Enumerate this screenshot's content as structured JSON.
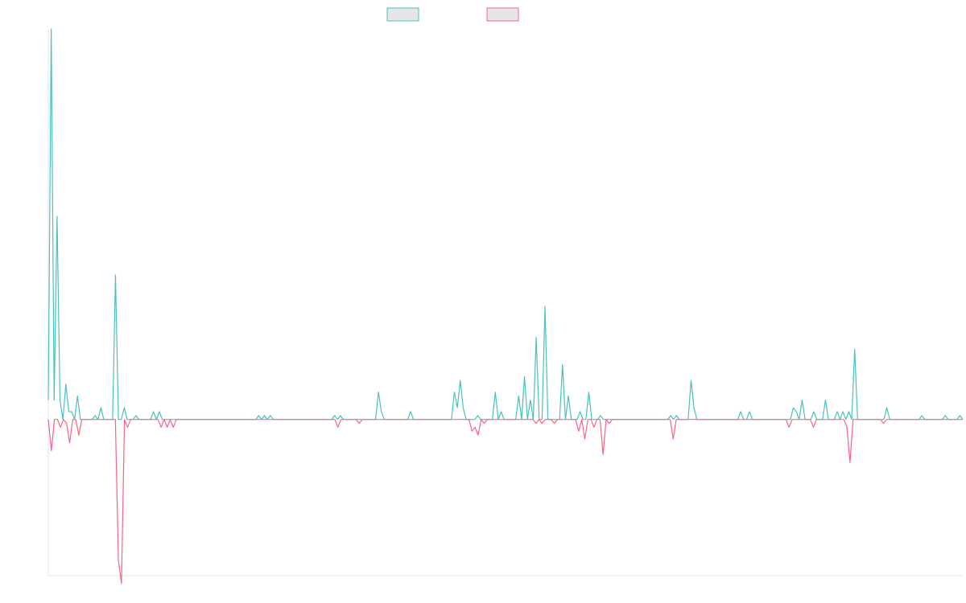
{
  "chart_data": {
    "type": "line",
    "ylim": [
      -0.4,
      1.0
    ],
    "grid": false,
    "legend_position": "top",
    "colors": {
      "series_a": "#4bc0c0",
      "series_b": "#ff6384",
      "swatch_fill": "#e6e6e6",
      "axis": "#e5e5e5"
    },
    "series": [
      {
        "legend_label": "",
        "color": "#4bc0c0",
        "values": [
          0.05,
          1.0,
          0.05,
          0.52,
          0.05,
          0.0,
          0.09,
          0.02,
          0.02,
          0.0,
          0.06,
          0.0,
          0.0,
          0.0,
          0.0,
          0.0,
          0.01,
          0.0,
          0.03,
          0.0,
          0.0,
          0.0,
          0.0,
          0.37,
          0.0,
          0.0,
          0.03,
          0.0,
          0.0,
          0.0,
          0.01,
          0.0,
          0.0,
          0.0,
          0.0,
          0.0,
          0.02,
          0.0,
          0.02,
          0.0,
          0.0,
          0.0,
          0.0,
          0.0,
          0.0,
          0.0,
          0.0,
          0.0,
          0.0,
          0.0,
          0.0,
          0.0,
          0.0,
          0.0,
          0.0,
          0.0,
          0.0,
          0.0,
          0.0,
          0.0,
          0.0,
          0.0,
          0.0,
          0.0,
          0.0,
          0.0,
          0.0,
          0.0,
          0.0,
          0.0,
          0.0,
          0.0,
          0.01,
          0.0,
          0.01,
          0.0,
          0.01,
          0.0,
          0.0,
          0.0,
          0.0,
          0.0,
          0.0,
          0.0,
          0.0,
          0.0,
          0.0,
          0.0,
          0.0,
          0.0,
          0.0,
          0.0,
          0.0,
          0.0,
          0.0,
          0.0,
          0.0,
          0.0,
          0.01,
          0.0,
          0.01,
          0.0,
          0.0,
          0.0,
          0.0,
          0.0,
          0.0,
          0.0,
          0.0,
          0.0,
          0.0,
          0.0,
          0.0,
          0.07,
          0.02,
          0.0,
          0.0,
          0.0,
          0.0,
          0.0,
          0.0,
          0.0,
          0.0,
          0.0,
          0.02,
          0.0,
          0.0,
          0.0,
          0.0,
          0.0,
          0.0,
          0.0,
          0.0,
          0.0,
          0.0,
          0.0,
          0.0,
          0.0,
          0.0,
          0.07,
          0.03,
          0.1,
          0.03,
          0.0,
          0.0,
          0.0,
          0.0,
          0.01,
          0.0,
          0.0,
          0.0,
          0.0,
          0.0,
          0.07,
          0.0,
          0.02,
          0.0,
          0.0,
          0.0,
          0.0,
          0.0,
          0.06,
          0.0,
          0.11,
          0.0,
          0.05,
          0.0,
          0.21,
          0.0,
          0.0,
          0.29,
          0.0,
          0.0,
          0.0,
          0.0,
          0.0,
          0.14,
          0.0,
          0.06,
          0.0,
          0.0,
          0.0,
          0.02,
          0.0,
          0.0,
          0.07,
          0.0,
          0.0,
          0.0,
          0.01,
          0.0,
          0.0,
          0.0,
          0.0,
          0.0,
          0.0,
          0.0,
          0.0,
          0.0,
          0.0,
          0.0,
          0.0,
          0.0,
          0.0,
          0.0,
          0.0,
          0.0,
          0.0,
          0.0,
          0.0,
          0.0,
          0.0,
          0.0,
          0.01,
          0.0,
          0.01,
          0.0,
          0.0,
          0.0,
          0.0,
          0.1,
          0.03,
          0.0,
          0.0,
          0.0,
          0.0,
          0.0,
          0.0,
          0.0,
          0.0,
          0.0,
          0.0,
          0.0,
          0.0,
          0.0,
          0.0,
          0.0,
          0.02,
          0.0,
          0.0,
          0.02,
          0.0,
          0.0,
          0.0,
          0.0,
          0.0,
          0.0,
          0.0,
          0.0,
          0.0,
          0.0,
          0.0,
          0.0,
          0.0,
          0.0,
          0.03,
          0.02,
          0.0,
          0.05,
          0.0,
          0.0,
          0.0,
          0.02,
          0.0,
          0.0,
          0.0,
          0.05,
          0.0,
          0.0,
          0.0,
          0.02,
          0.0,
          0.02,
          0.0,
          0.02,
          0.0,
          0.18,
          0.0,
          0.0,
          0.0,
          0.0,
          0.0,
          0.0,
          0.0,
          0.0,
          0.0,
          0.0,
          0.03,
          0.0,
          0.0,
          0.0,
          0.0,
          0.0,
          0.0,
          0.0,
          0.0,
          0.0,
          0.0,
          0.0,
          0.01,
          0.0,
          0.0,
          0.0,
          0.0,
          0.0,
          0.0,
          0.0,
          0.01,
          0.0,
          0.0,
          0.0,
          0.0,
          0.01,
          0.0
        ]
      },
      {
        "legend_label": "",
        "color": "#ff6384",
        "values": [
          0.0,
          -0.08,
          0.0,
          0.0,
          -0.02,
          0.0,
          -0.01,
          -0.06,
          0.0,
          0.0,
          -0.04,
          0.0,
          0.0,
          0.0,
          0.0,
          0.0,
          0.0,
          0.0,
          0.0,
          0.0,
          0.0,
          0.0,
          0.0,
          -0.36,
          -0.42,
          0.0,
          -0.02,
          0.0,
          0.0,
          0.0,
          0.0,
          0.0,
          0.0,
          0.0,
          0.0,
          0.0,
          0.0,
          -0.02,
          0.0,
          -0.02,
          0.0,
          -0.02,
          0.0,
          0.0,
          0.0,
          0.0,
          0.0,
          0.0,
          0.0,
          0.0,
          0.0,
          0.0,
          0.0,
          0.0,
          0.0,
          0.0,
          0.0,
          0.0,
          0.0,
          0.0,
          0.0,
          0.0,
          0.0,
          0.0,
          0.0,
          0.0,
          0.0,
          0.0,
          0.0,
          0.0,
          0.0,
          0.0,
          0.0,
          0.0,
          0.0,
          0.0,
          0.0,
          0.0,
          0.0,
          0.0,
          0.0,
          0.0,
          0.0,
          0.0,
          0.0,
          0.0,
          0.0,
          0.0,
          0.0,
          0.0,
          0.0,
          0.0,
          0.0,
          0.0,
          0.0,
          -0.02,
          0.0,
          0.0,
          0.0,
          0.0,
          0.0,
          0.0,
          -0.01,
          0.0,
          0.0,
          0.0,
          0.0,
          0.0,
          0.0,
          0.0,
          0.0,
          0.0,
          0.0,
          0.0,
          0.0,
          0.0,
          0.0,
          0.0,
          0.0,
          0.0,
          0.0,
          0.0,
          0.0,
          0.0,
          0.0,
          0.0,
          0.0,
          0.0,
          0.0,
          0.0,
          0.0,
          0.0,
          0.0,
          0.0,
          0.0,
          0.0,
          0.0,
          0.0,
          0.0,
          -0.03,
          -0.02,
          -0.04,
          0.0,
          -0.01,
          0.0,
          0.0,
          0.0,
          0.0,
          0.0,
          0.0,
          0.0,
          0.0,
          0.0,
          0.0,
          0.0,
          0.0,
          0.0,
          0.0,
          0.0,
          0.0,
          -0.01,
          0.0,
          -0.01,
          0.0,
          0.0,
          0.0,
          -0.01,
          0.0,
          0.0,
          0.0,
          0.0,
          0.0,
          0.0,
          0.0,
          -0.03,
          0.0,
          -0.05,
          0.0,
          0.0,
          -0.02,
          0.0,
          0.0,
          -0.09,
          0.0,
          -0.01,
          0.0,
          0.0,
          0.0,
          0.0,
          0.0,
          0.0,
          0.0,
          0.0,
          0.0,
          0.0,
          0.0,
          0.0,
          0.0,
          0.0,
          0.0,
          0.0,
          0.0,
          0.0,
          0.0,
          0.0,
          -0.05,
          0.0,
          0.0,
          0.0,
          0.0,
          0.0,
          0.0,
          0.0,
          0.0,
          0.0,
          0.0,
          0.0,
          0.0,
          0.0,
          0.0,
          0.0,
          0.0,
          0.0,
          0.0,
          0.0,
          0.0,
          0.0,
          0.0,
          0.0,
          0.0,
          0.0,
          0.0,
          0.0,
          0.0,
          0.0,
          0.0,
          0.0,
          0.0,
          0.0,
          0.0,
          0.0,
          0.0,
          0.0,
          -0.02,
          0.0,
          0.0,
          0.0,
          0.0,
          0.0,
          0.0,
          0.0,
          -0.02,
          0.0,
          0.0,
          0.0,
          0.0,
          0.0,
          0.0,
          0.0,
          0.0,
          0.0,
          0.0,
          -0.02,
          -0.11,
          0.0,
          0.0,
          0.0,
          0.0,
          0.0,
          0.0,
          0.0,
          0.0,
          0.0,
          0.0,
          -0.01,
          0.0,
          0.0,
          0.0,
          0.0,
          0.0,
          0.0,
          0.0,
          0.0,
          0.0,
          0.0,
          0.0,
          0.0,
          0.0,
          0.0,
          0.0,
          0.0,
          0.0,
          0.0,
          0.0,
          0.0,
          0.0,
          0.0,
          0.0,
          0.0,
          0.0,
          0.0
        ]
      }
    ]
  }
}
